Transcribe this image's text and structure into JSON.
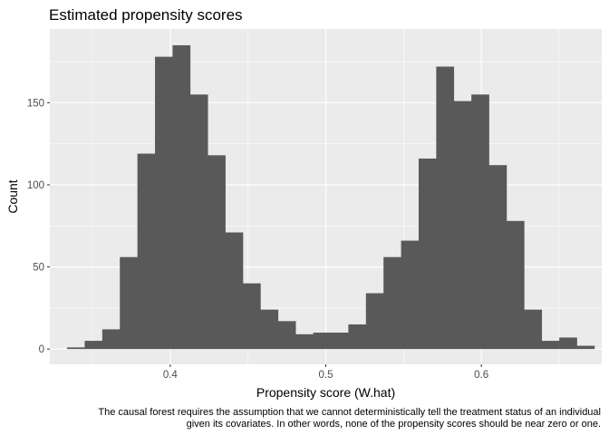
{
  "chart_data": {
    "type": "bar",
    "subtype": "histogram",
    "title": "Estimated propensity scores",
    "xlabel": "Propensity score (W.hat)",
    "ylabel": "Count",
    "xlim": [
      0.3226,
      0.6774
    ],
    "ylim": [
      -9.3,
      194.9
    ],
    "xticks": [
      {
        "value": 0.4,
        "label": "0.4"
      },
      {
        "value": 0.5,
        "label": "0.5"
      },
      {
        "value": 0.6,
        "label": "0.6"
      }
    ],
    "yticks": [
      {
        "value": 0,
        "label": "0"
      },
      {
        "value": 50,
        "label": "50"
      },
      {
        "value": 100,
        "label": "100"
      },
      {
        "value": 150,
        "label": "150"
      }
    ],
    "grid": true,
    "bar_color": "#595959",
    "panel_background": "#ebebeb",
    "grid_color": "#ffffff",
    "bin_width": 0.0113,
    "bins": [
      {
        "x0": 0.3337,
        "x1": 0.345,
        "count": 1
      },
      {
        "x0": 0.345,
        "x1": 0.3563,
        "count": 5
      },
      {
        "x0": 0.3563,
        "x1": 0.3676,
        "count": 12
      },
      {
        "x0": 0.3676,
        "x1": 0.3789,
        "count": 56
      },
      {
        "x0": 0.3789,
        "x1": 0.3902,
        "count": 119
      },
      {
        "x0": 0.3902,
        "x1": 0.4015,
        "count": 178
      },
      {
        "x0": 0.4015,
        "x1": 0.4128,
        "count": 185
      },
      {
        "x0": 0.4128,
        "x1": 0.4241,
        "count": 155
      },
      {
        "x0": 0.4241,
        "x1": 0.4354,
        "count": 118
      },
      {
        "x0": 0.4354,
        "x1": 0.4467,
        "count": 71
      },
      {
        "x0": 0.4467,
        "x1": 0.458,
        "count": 40
      },
      {
        "x0": 0.458,
        "x1": 0.4693,
        "count": 24
      },
      {
        "x0": 0.4693,
        "x1": 0.4806,
        "count": 17
      },
      {
        "x0": 0.4806,
        "x1": 0.4919,
        "count": 9
      },
      {
        "x0": 0.4919,
        "x1": 0.5032,
        "count": 10
      },
      {
        "x0": 0.5032,
        "x1": 0.5145,
        "count": 10
      },
      {
        "x0": 0.5145,
        "x1": 0.5258,
        "count": 15
      },
      {
        "x0": 0.5258,
        "x1": 0.5371,
        "count": 34
      },
      {
        "x0": 0.5371,
        "x1": 0.5484,
        "count": 56
      },
      {
        "x0": 0.5484,
        "x1": 0.5597,
        "count": 66
      },
      {
        "x0": 0.5597,
        "x1": 0.571,
        "count": 116
      },
      {
        "x0": 0.571,
        "x1": 0.5823,
        "count": 172
      },
      {
        "x0": 0.5823,
        "x1": 0.5936,
        "count": 151
      },
      {
        "x0": 0.5936,
        "x1": 0.6049,
        "count": 155
      },
      {
        "x0": 0.6049,
        "x1": 0.6162,
        "count": 112
      },
      {
        "x0": 0.6162,
        "x1": 0.6275,
        "count": 78
      },
      {
        "x0": 0.6275,
        "x1": 0.6388,
        "count": 24
      },
      {
        "x0": 0.6388,
        "x1": 0.6501,
        "count": 5
      },
      {
        "x0": 0.6501,
        "x1": 0.6614,
        "count": 7
      },
      {
        "x0": 0.6614,
        "x1": 0.6727,
        "count": 2
      }
    ]
  },
  "caption": {
    "line1": "The causal forest requires the assumption that we cannot deterministically tell the treatment status of an individual",
    "line2": "given its covariates. In other words, none of the propensity scores should be near zero or one."
  }
}
